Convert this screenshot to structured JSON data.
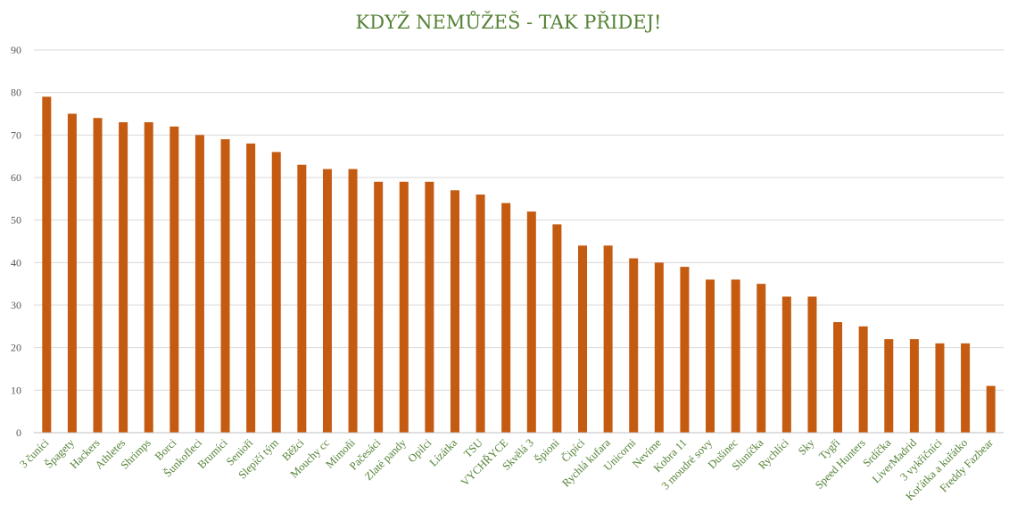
{
  "chart_data": {
    "type": "bar",
    "title": "KDYŽ NEMŮŽEŠ  - TAK PŘIDEJ!",
    "xlabel": "",
    "ylabel": "",
    "ylim": [
      0,
      90
    ],
    "yticks": [
      0,
      10,
      20,
      30,
      40,
      50,
      60,
      70,
      80,
      90
    ],
    "grid": true,
    "legend": "none",
    "bar_color": "#c55a11",
    "title_color": "#548235",
    "label_color": "#548235",
    "categories": [
      "3 čuníci",
      "Špagety",
      "Hackers",
      "Athletes",
      "Shrimps",
      "Borci",
      "Šunkofleci",
      "Brumíci",
      "Senioři",
      "Slepičí tým",
      "Běžci",
      "Mouchy cc",
      "Mimoňi",
      "Pačesáci",
      "Zlaté pandy",
      "Opilci",
      "Lízátka",
      "TSU",
      "VYCHŘYCE",
      "Skvělá 3",
      "Špioni",
      "Čipíci",
      "Rychlá kufara",
      "Unicorni",
      "Nevíme",
      "Kobra 11",
      "3 moudré sovy",
      "Dušinec",
      "Sluníčka",
      "Rychlíci",
      "Sky",
      "Tygři",
      "Speed Hunters",
      "Srdíčka",
      "LiverMadrid",
      "3 vykřičníci",
      "Koťátka a kuřátko",
      "Freddy Fazbear"
    ],
    "values": [
      79,
      75,
      74,
      73,
      73,
      72,
      70,
      69,
      68,
      66,
      63,
      62,
      62,
      59,
      59,
      59,
      57,
      56,
      54,
      52,
      49,
      44,
      44,
      41,
      40,
      39,
      36,
      36,
      35,
      32,
      32,
      26,
      25,
      22,
      22,
      21,
      21,
      11
    ]
  }
}
